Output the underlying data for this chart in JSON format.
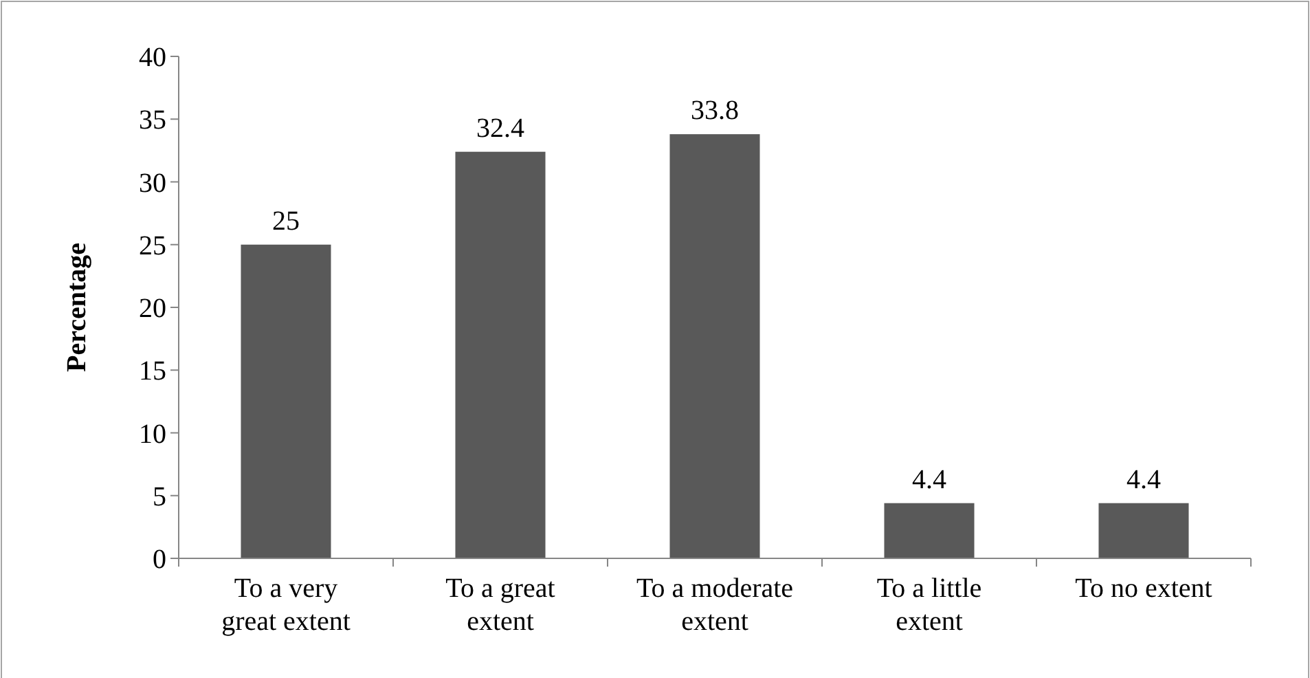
{
  "chart_data": {
    "type": "bar",
    "ylabel": "Percentage",
    "categories": [
      "To a very great extent",
      "To a great extent",
      "To a moderate extent",
      "To a little extent",
      "To no extent"
    ],
    "values": [
      25,
      32.4,
      33.8,
      4.4,
      4.4
    ],
    "color": "#595959",
    "ylim": [
      0,
      40
    ],
    "yticks": [
      0,
      5,
      10,
      15,
      20,
      25,
      30,
      35,
      40
    ],
    "data_labels": true
  }
}
